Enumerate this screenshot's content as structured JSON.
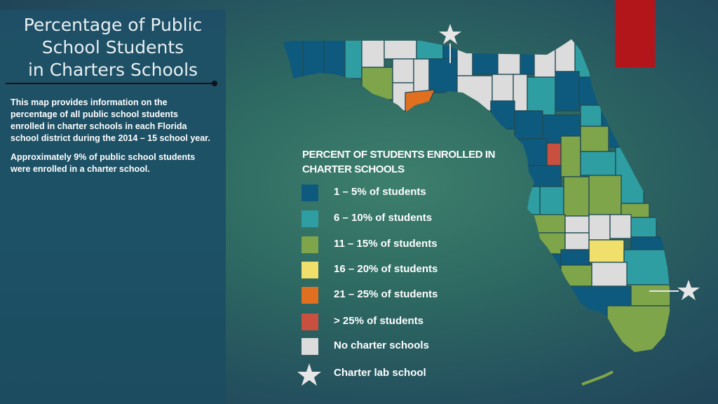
{
  "slide": {
    "title_lines": [
      "Percentage of Public",
      "School Students",
      "in Charters Schools"
    ],
    "description": [
      "This map provides information on the percentage of all public school students enrolled in charter schools in each Florida school district during the 2014 – 15 school year.",
      "Approximately 9% of public school students were enrolled in a charter school."
    ],
    "accent_color": "#b3161a"
  },
  "legend": {
    "title": "PERCENT OF STUDENTS ENROLLED IN CHARTER SCHOOLS",
    "items": [
      {
        "label": "1 – 5% of students",
        "color": "#0e5a7e"
      },
      {
        "label": "6 – 10% of students",
        "color": "#2e9ea3"
      },
      {
        "label": "11 – 15% of students",
        "color": "#7fa54a"
      },
      {
        "label": "16 – 20% of students",
        "color": "#f0df6a"
      },
      {
        "label": "21 – 25% of students",
        "color": "#e07020"
      },
      {
        "label": "> 25% of students",
        "color": "#c9503e"
      },
      {
        "label": "No charter schools",
        "color": "#dcdcdc"
      }
    ],
    "lab_school": {
      "label": "Charter lab school",
      "icon": "star-icon",
      "color": "#e6e6e6"
    }
  },
  "map": {
    "region": "Florida school districts",
    "lab_school_markers": [
      "north",
      "southeast"
    ]
  }
}
